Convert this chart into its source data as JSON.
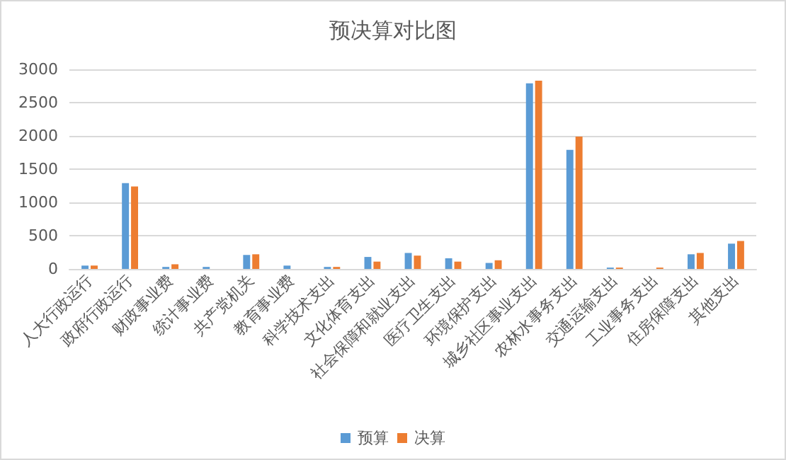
{
  "chart_data": {
    "type": "bar",
    "title": "预决算对比图",
    "categories": [
      "人大行政运行",
      "政府行政运行",
      "财政事业费",
      "统计事业费",
      "共产党机关",
      "教育事业费",
      "科学技术支出",
      "文化体育支出",
      "社会保障和就业支出",
      "医疗卫生支出",
      "环境保护支出",
      "城乡社区事业支出",
      "农林水事务支出",
      "交通运输支出",
      "工业事务支出",
      "住房保障支出",
      "其他支出"
    ],
    "series": [
      {
        "name": "预算",
        "color": "#5b9bd5",
        "values": [
          50,
          1290,
          30,
          30,
          210,
          50,
          30,
          180,
          240,
          160,
          90,
          2790,
          1790,
          20,
          0,
          220,
          380
        ]
      },
      {
        "name": "决算",
        "color": "#ed7d31",
        "values": [
          50,
          1240,
          70,
          0,
          220,
          0,
          30,
          110,
          200,
          110,
          130,
          2830,
          1990,
          20,
          20,
          240,
          420
        ]
      }
    ],
    "ylim": [
      0,
      3000
    ],
    "yticks": [
      0,
      500,
      1000,
      1500,
      2000,
      2500,
      3000
    ],
    "grid": "y",
    "legend": "bottom"
  }
}
